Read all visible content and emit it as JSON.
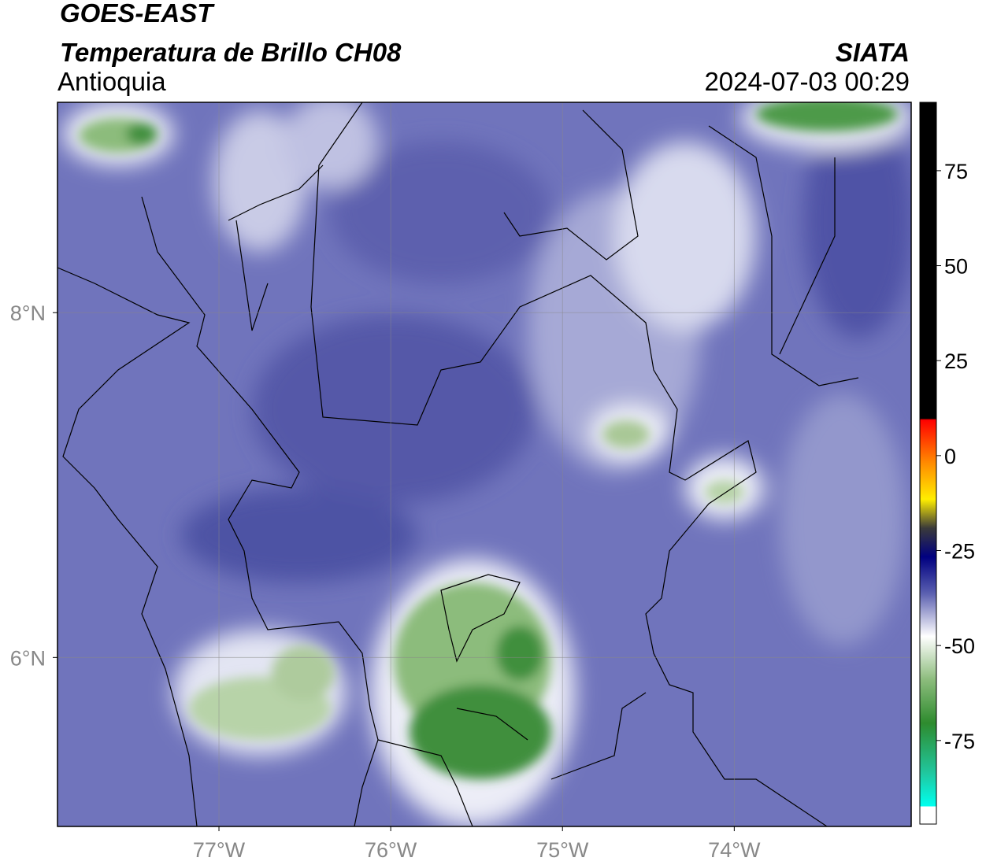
{
  "header": {
    "title": "GOES-EAST",
    "subtitle": "Temperatura de Brillo CH08",
    "region": "Antioquia",
    "source": "SIATA",
    "datetime": "2024-07-03 00:29"
  },
  "map": {
    "lonlim": [
      -77.94,
      -72.97
    ],
    "latlim": [
      5.02,
      9.22
    ],
    "lon_ticks": [
      {
        "value": -77,
        "label": "77°W"
      },
      {
        "value": -76,
        "label": "76°W"
      },
      {
        "value": -75,
        "label": "75°W"
      },
      {
        "value": -74,
        "label": "74°W"
      }
    ],
    "lat_ticks": [
      {
        "value": 8,
        "label": "8°N"
      },
      {
        "value": 6,
        "label": "6°N"
      }
    ]
  },
  "colorbar": {
    "lim": [
      -97,
      93
    ],
    "ticks": [
      75,
      50,
      25,
      0,
      -25,
      -50,
      -75
    ]
  }
}
